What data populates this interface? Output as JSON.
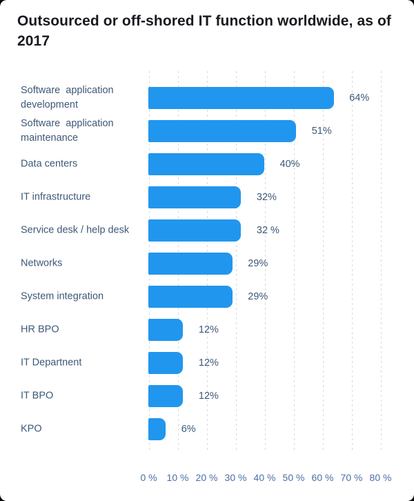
{
  "title": "Outsourced or off-shored IT function worldwide, as of\n2017",
  "colors": {
    "bar": "#2196ee",
    "title_text": "#17191e",
    "category_text": "#3d5878",
    "value_text": "#3d5878",
    "axis_text": "#4c6fa5",
    "gridline": "#d5d8de",
    "card_background": "#ffffff",
    "page_background": "#0a0a0a"
  },
  "chart_data": {
    "type": "bar",
    "orientation": "horizontal",
    "title": "Outsourced or off-shored IT function worldwide, as of 2017",
    "categories": [
      "Software  application development",
      "Software  application maintenance",
      "Data centers",
      "IT infrastructure",
      "Service desk / help desk",
      "Networks",
      "System integration",
      "HR BPO",
      "IT Departnent",
      "IT BPO",
      "KPO"
    ],
    "values": [
      64,
      51,
      40,
      32,
      32,
      29,
      29,
      12,
      12,
      12,
      6
    ],
    "value_labels": [
      "64%",
      "51%",
      "40%",
      "32%",
      "32 %",
      "29%",
      "29%",
      "12%",
      "12%",
      "12%",
      "6%"
    ],
    "x_ticks": [
      "0 %",
      "10 %",
      "20 %",
      "30 %",
      "40 %",
      "50 %",
      "60 %",
      "70 %",
      "80 %"
    ],
    "xlabel": "",
    "ylabel": "",
    "xlim": [
      0,
      80
    ],
    "grid": "vertical-dashed",
    "legend": "none"
  }
}
